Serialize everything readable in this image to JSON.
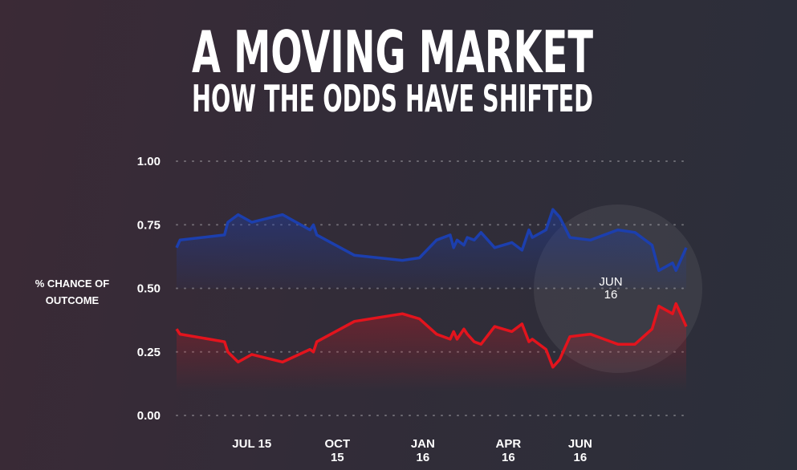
{
  "chart_data": {
    "type": "line",
    "title": "A MOVING MARKET",
    "subtitle": "HOW THE ODDS HAVE SHIFTED",
    "y_label": "% CHANCE OF OUTCOME",
    "annotation": "JUN 16",
    "x": [
      2015.28,
      2015.29,
      2015.42,
      2015.43,
      2015.46,
      2015.5,
      2015.59,
      2015.67,
      2015.68,
      2015.69,
      2015.8,
      2015.94,
      2015.99,
      2016.04,
      2016.08,
      2016.09,
      2016.1,
      2016.12,
      2016.13,
      2016.15,
      2016.17,
      2016.21,
      2016.26,
      2016.29,
      2016.31,
      2016.32,
      2016.36,
      2016.38,
      2016.4,
      2016.43,
      2016.49,
      2016.57,
      2016.62,
      2016.67,
      2016.69,
      2016.73,
      2016.74,
      2016.77
    ],
    "series": [
      {
        "color": "#1c3fae",
        "values": [
          0.66,
          0.69,
          0.71,
          0.76,
          0.79,
          0.76,
          0.79,
          0.73,
          0.75,
          0.71,
          0.63,
          0.61,
          0.62,
          0.69,
          0.71,
          0.66,
          0.69,
          0.67,
          0.7,
          0.69,
          0.72,
          0.66,
          0.68,
          0.65,
          0.73,
          0.7,
          0.73,
          0.81,
          0.78,
          0.7,
          0.69,
          0.73,
          0.72,
          0.67,
          0.57,
          0.6,
          0.57,
          0.66
        ]
      },
      {
        "color": "#e3141d",
        "values": [
          0.34,
          0.32,
          0.29,
          0.25,
          0.21,
          0.24,
          0.21,
          0.26,
          0.25,
          0.29,
          0.37,
          0.4,
          0.38,
          0.32,
          0.3,
          0.33,
          0.3,
          0.34,
          0.32,
          0.29,
          0.28,
          0.35,
          0.33,
          0.36,
          0.29,
          0.3,
          0.26,
          0.19,
          0.22,
          0.31,
          0.32,
          0.28,
          0.28,
          0.34,
          0.43,
          0.4,
          0.44,
          0.35
        ]
      }
    ],
    "xlim": [
      2015.28,
      2016.77
    ],
    "xticks": [
      {
        "value": 2015.5,
        "label": "JUL 15"
      },
      {
        "value": 2015.75,
        "label": "OCT 15"
      },
      {
        "value": 2016.0,
        "label": "JAN 16"
      },
      {
        "value": 2016.25,
        "label": "APR 16"
      },
      {
        "value": 2016.46,
        "label": "JUN 16"
      }
    ],
    "ylim": [
      0,
      1
    ],
    "yticks": [
      {
        "value": 0,
        "label": "0.00"
      },
      0.25,
      {
        "value": 0.5,
        "label": "0.50"
      },
      0.75,
      {
        "value": 1,
        "label": "1.00"
      }
    ],
    "grid": true
  }
}
